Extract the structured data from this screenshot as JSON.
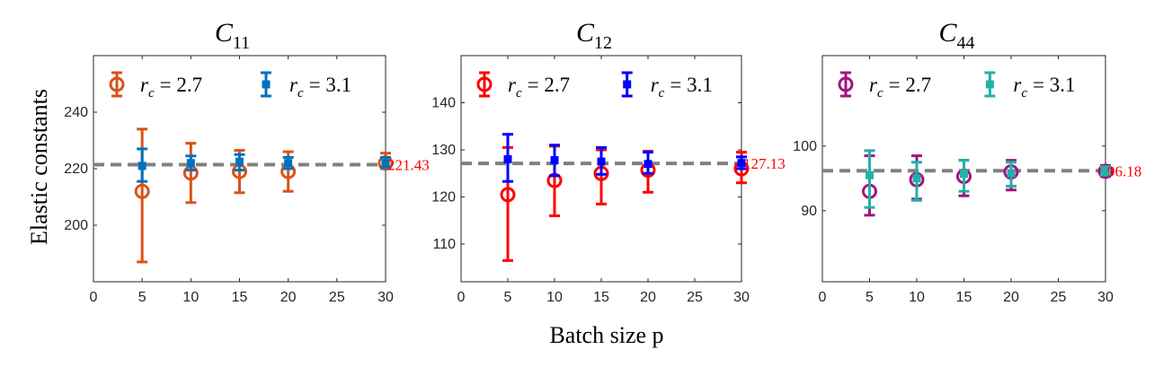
{
  "figure": {
    "ylabel": "Elastic constants",
    "xlabel": "Batch size p"
  },
  "chart_data": [
    {
      "type": "scatter",
      "title_main": "C",
      "title_sub": "11",
      "xlim": [
        0,
        30
      ],
      "ylim": [
        180,
        260
      ],
      "xticks": [
        0,
        5,
        10,
        15,
        20,
        25,
        30
      ],
      "yticks": [
        200,
        220,
        240
      ],
      "reference_value": 221.43,
      "reference_label": "221.43",
      "series": [
        {
          "name_var": "r",
          "name_sub": "c",
          "name_value": "= 2.7",
          "marker": "circle",
          "color": "#D95319",
          "x": [
            5,
            10,
            15,
            20,
            30
          ],
          "y": [
            212,
            218.5,
            219,
            219,
            222
          ],
          "err_low": [
            187,
            208,
            211.5,
            212,
            220
          ],
          "err_high": [
            234,
            229,
            226.5,
            226,
            225.5
          ]
        },
        {
          "name_var": "r",
          "name_sub": "c",
          "name_value": "= 3.1",
          "marker": "square",
          "color": "#0072BD",
          "x": [
            5,
            10,
            15,
            20,
            30
          ],
          "y": [
            221,
            222,
            222.5,
            222,
            222
          ],
          "err_low": [
            215.5,
            219.5,
            219.5,
            220,
            220.5
          ],
          "err_high": [
            227,
            224.5,
            225,
            224,
            224
          ]
        }
      ]
    },
    {
      "type": "scatter",
      "title_main": "C",
      "title_sub": "12",
      "xlim": [
        0,
        30
      ],
      "ylim": [
        102,
        150
      ],
      "xticks": [
        0,
        5,
        10,
        15,
        20,
        25,
        30
      ],
      "yticks": [
        110,
        120,
        130,
        140
      ],
      "reference_value": 127.13,
      "reference_label": "127.13",
      "series": [
        {
          "name_var": "r",
          "name_sub": "c",
          "name_value": "= 2.7",
          "marker": "circle",
          "color": "#FF0000",
          "x": [
            5,
            10,
            15,
            20,
            30
          ],
          "y": [
            120.5,
            123.5,
            125,
            125.7,
            126
          ],
          "err_low": [
            106.5,
            116,
            118.5,
            121,
            123
          ],
          "err_high": [
            130.5,
            130.8,
            130,
            129.7,
            129.5
          ]
        },
        {
          "name_var": "r",
          "name_sub": "c",
          "name_value": "= 3.1",
          "marker": "square",
          "color": "#0000FF",
          "x": [
            5,
            10,
            15,
            20,
            30
          ],
          "y": [
            128,
            127.8,
            127.5,
            127,
            127.2
          ],
          "err_low": [
            123.3,
            124.5,
            124.8,
            125,
            126
          ],
          "err_high": [
            133.3,
            131,
            130.5,
            129.5,
            128.5
          ]
        }
      ]
    },
    {
      "type": "scatter",
      "title_main": "C",
      "title_sub": "44",
      "xlim": [
        0,
        30
      ],
      "ylim": [
        79,
        114
      ],
      "xticks": [
        0,
        5,
        10,
        15,
        20,
        25,
        30
      ],
      "yticks": [
        90,
        100
      ],
      "reference_value": 96.18,
      "reference_label": "96.18",
      "series": [
        {
          "name_var": "r",
          "name_sub": "c",
          "name_value": "= 2.7",
          "marker": "circle",
          "color": "#A2147F",
          "x": [
            5,
            10,
            15,
            20,
            30
          ],
          "y": [
            93,
            94.8,
            95.3,
            96,
            96.1
          ],
          "err_low": [
            89.3,
            91.8,
            92.3,
            93.2,
            95.3
          ],
          "err_high": [
            98.5,
            98.5,
            97.8,
            97.8,
            97
          ]
        },
        {
          "name_var": "r",
          "name_sub": "c",
          "name_value": "= 3.1",
          "marker": "square",
          "color": "#20B2AA",
          "x": [
            5,
            10,
            15,
            20,
            30
          ],
          "y": [
            95.5,
            95,
            95.7,
            95.8,
            96.2
          ],
          "err_low": [
            90.5,
            91.6,
            93,
            93.8,
            95.5
          ],
          "err_high": [
            99.3,
            97.5,
            97.8,
            97.5,
            96.8
          ]
        }
      ]
    }
  ]
}
